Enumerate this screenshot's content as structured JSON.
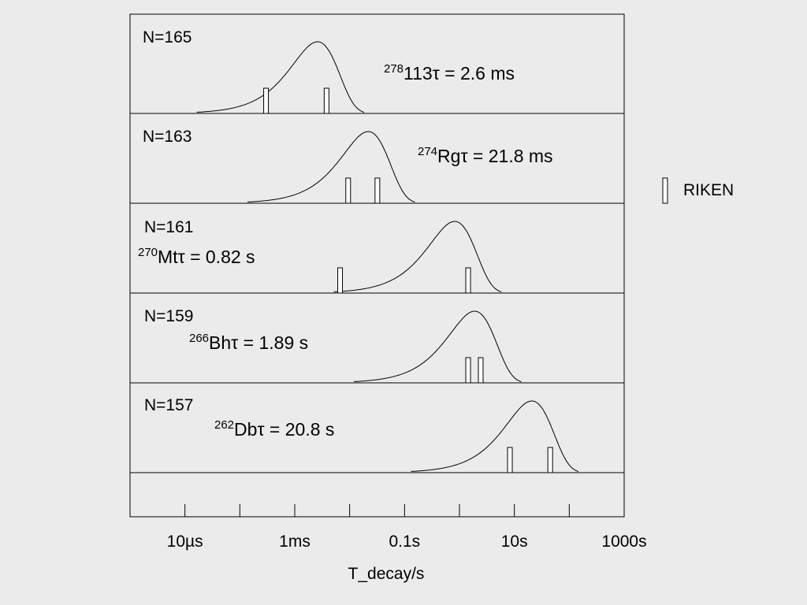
{
  "chart_data": {
    "type": "decay",
    "xlabel": "T_decay/s",
    "log_x": true,
    "xlim": [
      1e-06,
      1000
    ],
    "xticks": [
      {
        "value": 1e-05,
        "label": "10µs"
      },
      {
        "value": 0.001,
        "label": "1ms"
      },
      {
        "value": 0.1,
        "label": "0.1s"
      },
      {
        "value": 10,
        "label": "10s"
      },
      {
        "value": 1000,
        "label": "1000s"
      }
    ],
    "minor_xticks": [
      0.0001,
      0.01,
      1,
      100
    ],
    "legend_label": "RIKEN",
    "panels": [
      {
        "n_label": "N=165",
        "mass": 278,
        "element": "113",
        "tau": {
          "value": 0.0026,
          "label": "τ = 2.6 ms"
        },
        "events": [
          0.0003,
          0.0038
        ]
      },
      {
        "n_label": "N=163",
        "mass": 274,
        "element": "Rg",
        "tau": {
          "value": 0.0218,
          "label": "τ = 21.8 ms"
        },
        "events": [
          0.0094,
          0.032
        ]
      },
      {
        "n_label": "N=161",
        "mass": 270,
        "element": "Mt",
        "tau": {
          "value": 0.82,
          "label": "τ = 0.82 s"
        },
        "events": [
          0.0067,
          1.44
        ]
      },
      {
        "n_label": "N=159",
        "mass": 266,
        "element": "Bh",
        "tau": {
          "value": 1.89,
          "label": "τ = 1.89 s"
        },
        "events": [
          1.44,
          2.44
        ]
      },
      {
        "n_label": "N=157",
        "mass": 262,
        "element": "Db",
        "tau": {
          "value": 20.8,
          "label": "τ = 20.8 s"
        },
        "events": [
          8.3,
          45
        ]
      }
    ]
  }
}
